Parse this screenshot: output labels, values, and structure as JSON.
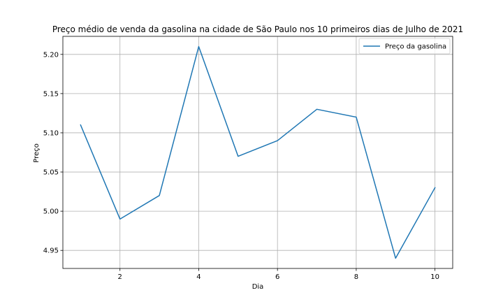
{
  "chart_data": {
    "type": "line",
    "title": "Preço médio de venda da gasolina na cidade de São Paulo nos 10 primeiros dias de Julho de 2021",
    "xlabel": "Dia",
    "ylabel": "Preço",
    "x": [
      1,
      2,
      3,
      4,
      5,
      6,
      7,
      8,
      9,
      10
    ],
    "series": [
      {
        "name": "Preço da gasolina",
        "color": "#1f77b4",
        "values": [
          5.11,
          4.99,
          5.02,
          5.21,
          5.07,
          5.09,
          5.13,
          5.12,
          4.94,
          5.03
        ]
      }
    ],
    "xlim": [
      0.55,
      10.45
    ],
    "ylim": [
      4.927,
      5.223
    ],
    "xticks": [
      2,
      4,
      6,
      8,
      10
    ],
    "xtick_labels": [
      "2",
      "4",
      "6",
      "8",
      "10"
    ],
    "yticks": [
      4.95,
      5.0,
      5.05,
      5.1,
      5.15,
      5.2
    ],
    "ytick_labels": [
      "4.95",
      "5.00",
      "5.05",
      "5.10",
      "5.15",
      "5.20"
    ],
    "grid": true,
    "legend_position": "top-right"
  }
}
